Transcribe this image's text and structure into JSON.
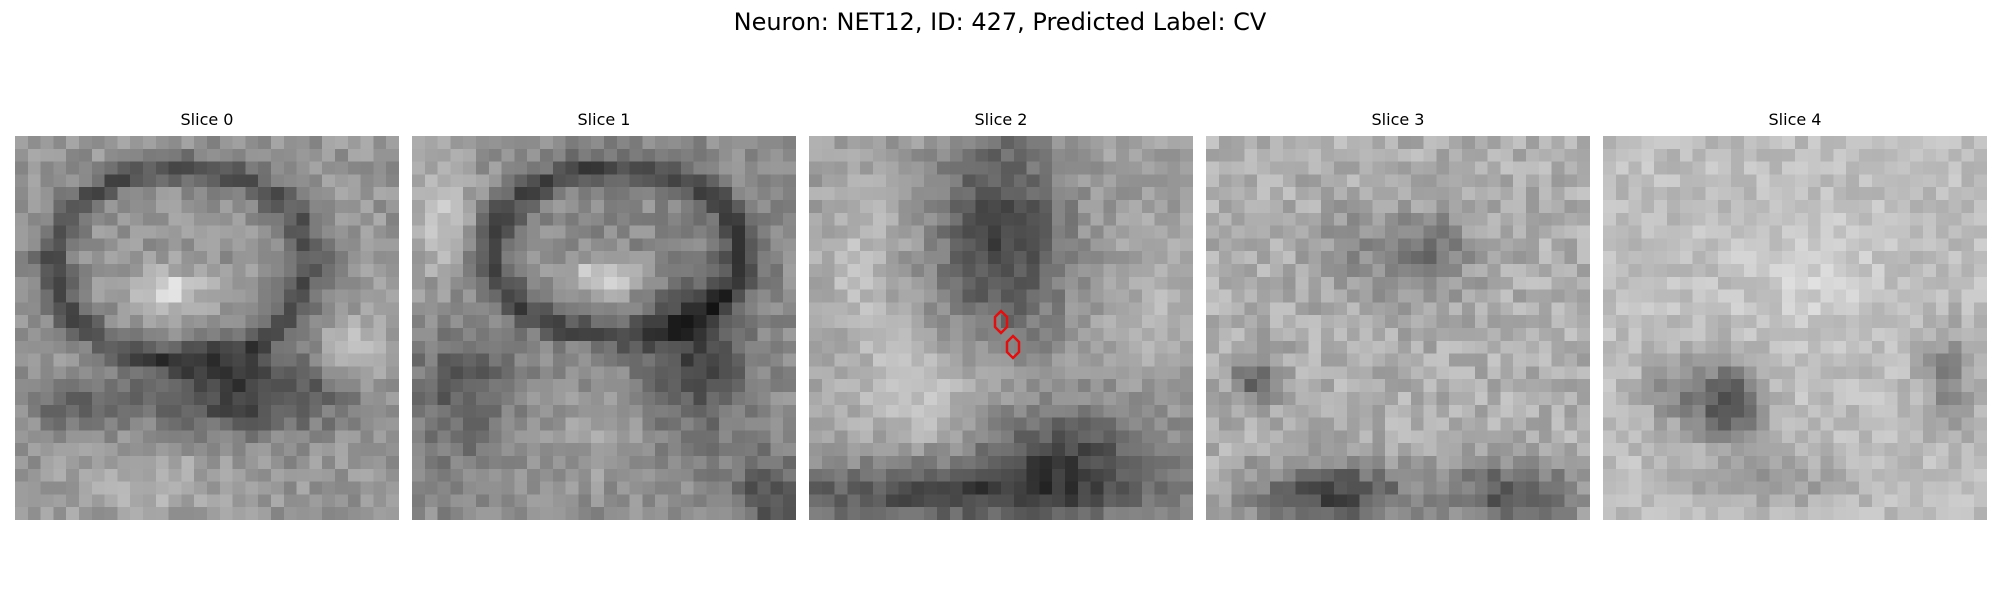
{
  "figure": {
    "title": "Neuron: NET12, ID: 427, Predicted Label: CV",
    "panels": [
      {
        "title": "Slice 0",
        "style": "slice-0-dark-ring-left-and-dark-lower-mass",
        "markers": []
      },
      {
        "title": "Slice 1",
        "style": "slice-1-dark-ring-and-dark-right-band",
        "markers": []
      },
      {
        "title": "Slice 2",
        "style": "slice-2-dark-center-and-dark-bottom",
        "markers": [
          "red-hexagon-marker",
          "red-hexagon-marker"
        ]
      },
      {
        "title": "Slice 3",
        "style": "slice-3-light-with-dark-bottom-blobs",
        "markers": []
      },
      {
        "title": "Slice 4",
        "style": "slice-4-light-with-dark-spot",
        "markers": []
      }
    ],
    "colors": {
      "background": "#ffffff",
      "marker": "#e01010",
      "text": "#000000"
    }
  }
}
